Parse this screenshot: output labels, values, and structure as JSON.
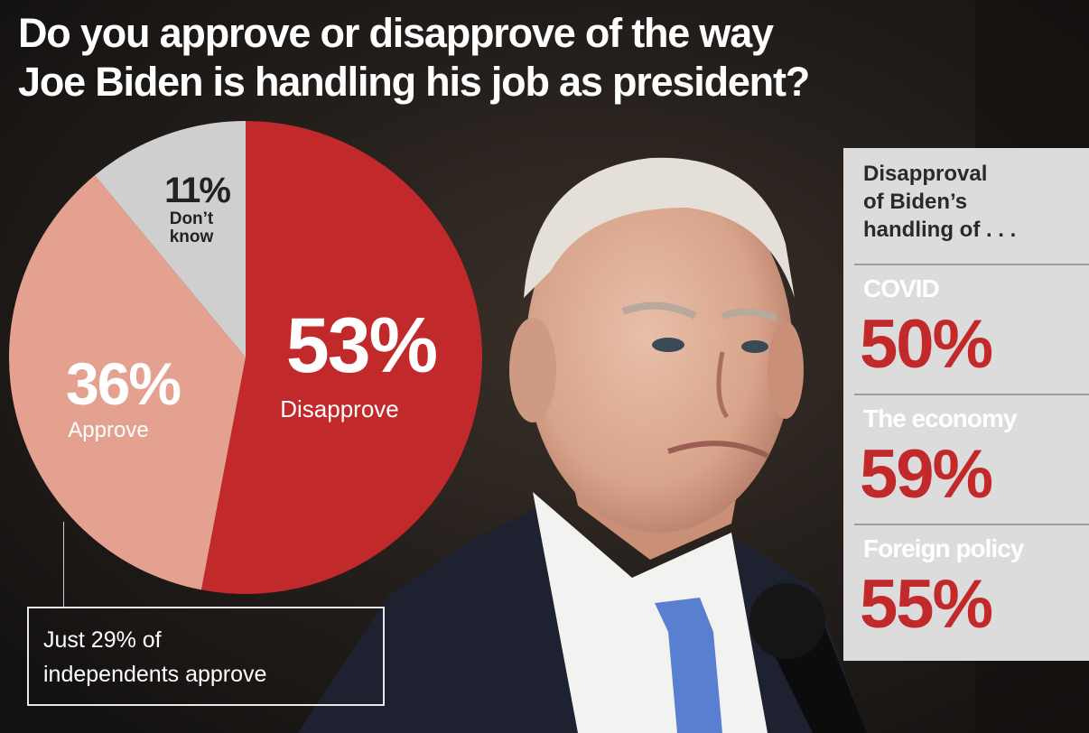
{
  "title": {
    "line1": "Do you approve or disapprove of the way",
    "line2": "Joe Biden is handling his job as president?"
  },
  "chart_data": {
    "type": "pie",
    "title": "Do you approve or disapprove of the way Joe Biden is handling his job as president?",
    "slices": [
      {
        "label": "Disapprove",
        "value": 53,
        "display": "53%",
        "color": "#c2292b"
      },
      {
        "label": "Approve",
        "value": 36,
        "display": "36%",
        "color": "#e4a190"
      },
      {
        "label": "Don’t know",
        "label_lines": [
          "Don’t",
          "know"
        ],
        "value": 11,
        "display": "11%",
        "color": "#cfcfcf"
      }
    ]
  },
  "panel": {
    "heading_lines": [
      "Disapproval",
      "of Biden’s",
      "handling of . . ."
    ],
    "items": [
      {
        "label": "COVID",
        "value": "50%"
      },
      {
        "label": "The economy",
        "value": "59%"
      },
      {
        "label": "Foreign policy",
        "value": "55%"
      }
    ]
  },
  "callout": {
    "lines": [
      "Just 29% of",
      "independents approve"
    ]
  },
  "colors": {
    "disapprove": "#c2292b",
    "approve": "#e4a190",
    "dont_know": "#cfcfcf",
    "panel_bg": "#dcdcdc",
    "background": "#1b1816"
  },
  "photo_icon": "president-photo-icon"
}
